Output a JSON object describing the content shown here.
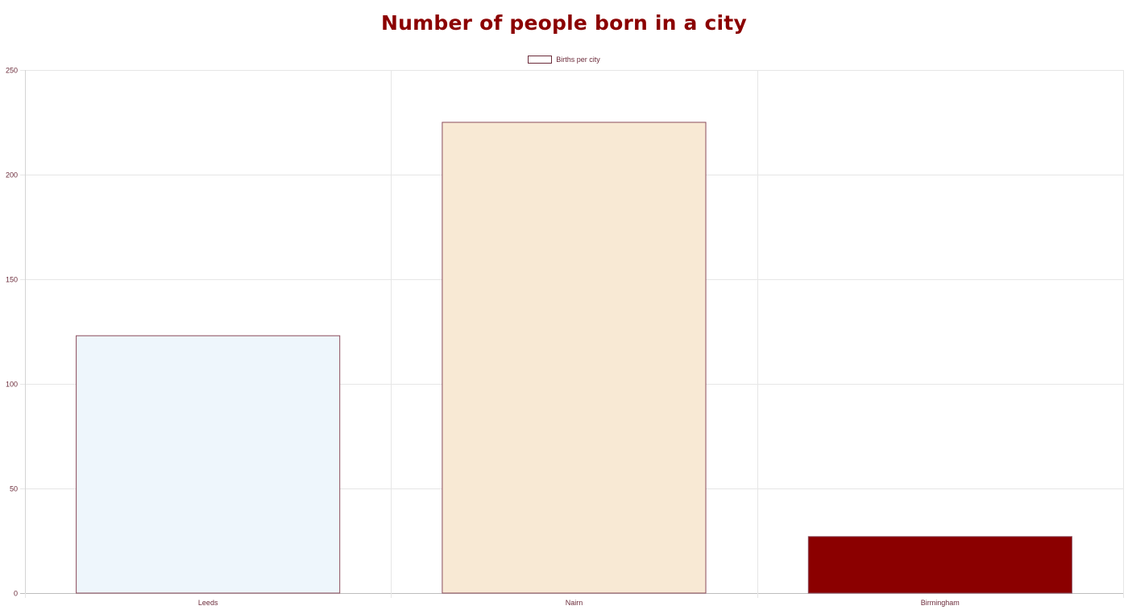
{
  "chart_data": {
    "type": "bar",
    "title": "Number of people born in a city",
    "categories": [
      "Leeds",
      "Nairn",
      "Birmingham"
    ],
    "series": [
      {
        "name": "Births per city",
        "values": [
          123,
          225,
          27
        ]
      }
    ],
    "bar_colors": [
      "#eef6fc",
      "#f8e9d4",
      "#8b0000"
    ],
    "border_color": "#8a4a5a",
    "title_color": "#8b0000",
    "label_color": "#6b2b3a",
    "ylim": [
      0,
      250
    ],
    "y_ticks": [
      0,
      50,
      100,
      150,
      200,
      250
    ],
    "grid": true,
    "legend_position": "top-center"
  }
}
